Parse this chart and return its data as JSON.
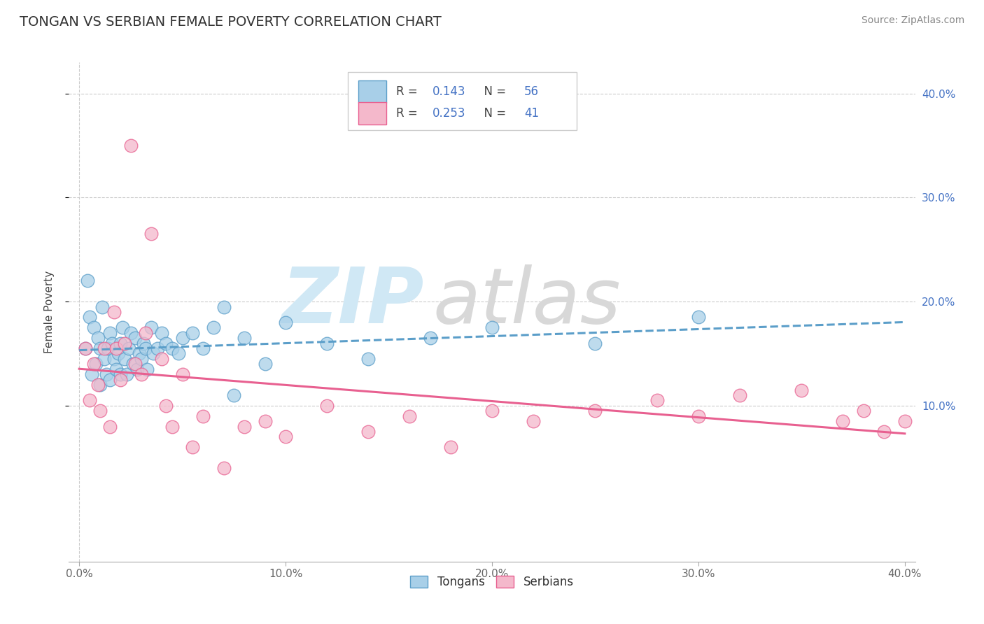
{
  "title": "TONGAN VS SERBIAN FEMALE POVERTY CORRELATION CHART",
  "source": "Source: ZipAtlas.com",
  "ylabel": "Female Poverty",
  "xlim": [
    -0.005,
    0.405
  ],
  "ylim": [
    -0.05,
    0.43
  ],
  "xticks": [
    0.0,
    0.1,
    0.2,
    0.3,
    0.4
  ],
  "xtick_labels": [
    "0.0%",
    "10.0%",
    "20.0%",
    "30.0%",
    "40.0%"
  ],
  "ytick_labels_right": [
    "10.0%",
    "20.0%",
    "30.0%",
    "40.0%"
  ],
  "ytick_vals_right": [
    0.1,
    0.2,
    0.3,
    0.4
  ],
  "tongan_R": 0.143,
  "tongan_N": 56,
  "serbian_R": 0.253,
  "serbian_N": 41,
  "tongan_color": "#a8cfe8",
  "serbian_color": "#f4b8cb",
  "tongan_edge_color": "#5b9ec9",
  "serbian_edge_color": "#e86090",
  "tongan_line_color": "#5b9ec9",
  "serbian_line_color": "#e86090",
  "background_color": "#ffffff",
  "grid_color": "#cccccc",
  "tongan_x": [
    0.003,
    0.004,
    0.005,
    0.006,
    0.007,
    0.008,
    0.009,
    0.01,
    0.01,
    0.011,
    0.012,
    0.013,
    0.014,
    0.015,
    0.015,
    0.016,
    0.017,
    0.018,
    0.019,
    0.02,
    0.02,
    0.021,
    0.022,
    0.023,
    0.024,
    0.025,
    0.026,
    0.027,
    0.028,
    0.029,
    0.03,
    0.031,
    0.032,
    0.033,
    0.035,
    0.036,
    0.038,
    0.04,
    0.042,
    0.045,
    0.048,
    0.05,
    0.055,
    0.06,
    0.065,
    0.07,
    0.075,
    0.08,
    0.09,
    0.1,
    0.12,
    0.14,
    0.17,
    0.2,
    0.25,
    0.3
  ],
  "tongan_y": [
    0.155,
    0.22,
    0.185,
    0.13,
    0.175,
    0.14,
    0.165,
    0.12,
    0.155,
    0.195,
    0.145,
    0.13,
    0.155,
    0.17,
    0.125,
    0.16,
    0.145,
    0.135,
    0.15,
    0.16,
    0.13,
    0.175,
    0.145,
    0.13,
    0.155,
    0.17,
    0.14,
    0.165,
    0.135,
    0.15,
    0.145,
    0.16,
    0.155,
    0.135,
    0.175,
    0.15,
    0.155,
    0.17,
    0.16,
    0.155,
    0.15,
    0.165,
    0.17,
    0.155,
    0.175,
    0.195,
    0.11,
    0.165,
    0.14,
    0.18,
    0.16,
    0.145,
    0.165,
    0.175,
    0.16,
    0.185
  ],
  "serbian_x": [
    0.003,
    0.005,
    0.007,
    0.009,
    0.01,
    0.012,
    0.015,
    0.017,
    0.018,
    0.02,
    0.022,
    0.025,
    0.027,
    0.03,
    0.032,
    0.035,
    0.04,
    0.042,
    0.045,
    0.05,
    0.055,
    0.06,
    0.07,
    0.08,
    0.09,
    0.1,
    0.12,
    0.14,
    0.16,
    0.18,
    0.2,
    0.22,
    0.25,
    0.28,
    0.3,
    0.32,
    0.35,
    0.37,
    0.38,
    0.39,
    0.4
  ],
  "serbian_y": [
    0.155,
    0.105,
    0.14,
    0.12,
    0.095,
    0.155,
    0.08,
    0.19,
    0.155,
    0.125,
    0.16,
    0.35,
    0.14,
    0.13,
    0.17,
    0.265,
    0.145,
    0.1,
    0.08,
    0.13,
    0.06,
    0.09,
    0.04,
    0.08,
    0.085,
    0.07,
    0.1,
    0.075,
    0.09,
    0.06,
    0.095,
    0.085,
    0.095,
    0.105,
    0.09,
    0.11,
    0.115,
    0.085,
    0.095,
    0.075,
    0.085
  ],
  "watermark_zip_color": "#d0e8f5",
  "watermark_atlas_color": "#d8d8d8"
}
